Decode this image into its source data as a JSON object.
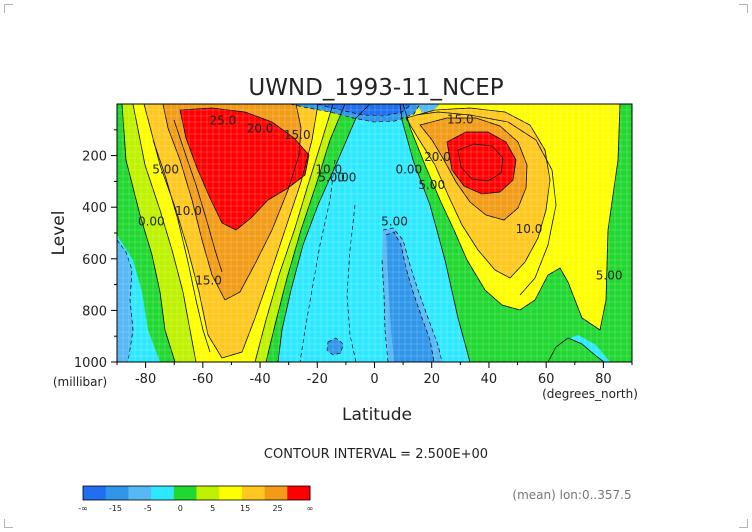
{
  "chart_data": {
    "type": "contour",
    "title": "UWND_1993-11_NCEP",
    "xlabel": "Latitude",
    "ylabel": "Level",
    "x_units": "(degrees_north)",
    "y_units": "(millibar)",
    "xlim": [
      -90,
      90
    ],
    "ylim": [
      1000,
      0
    ],
    "y_axis_inverted": true,
    "xticks": [
      -80,
      -60,
      -40,
      -20,
      0,
      20,
      40,
      60,
      80
    ],
    "yticks": [
      200,
      400,
      600,
      800,
      1000
    ],
    "contour_interval_label": "CONTOUR INTERVAL = 2.500E+00",
    "averaging_note": "(mean) lon:0..357.5",
    "colorbar": {
      "tick_labels": [
        "-∞",
        "-15",
        "-5",
        "0",
        "5",
        "15",
        "25",
        "∞"
      ],
      "colors": [
        "#1f6ff0",
        "#2f96ea",
        "#56b8f4",
        "#2ee8ff",
        "#20d830",
        "#bff200",
        "#ffff00",
        "#ffc81e",
        "#f29b17",
        "#ff0000"
      ]
    },
    "contour_labels": [
      {
        "text": "25.0",
        "lat": -53,
        "lev": 80
      },
      {
        "text": "20.0",
        "lat": -40,
        "lev": 110
      },
      {
        "text": "15.0",
        "lat": -27,
        "lev": 135
      },
      {
        "text": "5.00",
        "lat": -73,
        "lev": 270
      },
      {
        "text": "0.00",
        "lat": -78,
        "lev": 470
      },
      {
        "text": "10.0",
        "lat": -65,
        "lev": 430
      },
      {
        "text": "15.0",
        "lat": -58,
        "lev": 700
      },
      {
        "text": "10.0",
        "lat": -16,
        "lev": 270
      },
      {
        "text": "5.00",
        "lat": -15,
        "lev": 300
      },
      {
        "text": "0.00",
        "lat": -11,
        "lev": 300
      },
      {
        "text": "15.0",
        "lat": 30,
        "lev": 75
      },
      {
        "text": "20.0",
        "lat": 22,
        "lev": 220
      },
      {
        "text": "0.00",
        "lat": 12,
        "lev": 270
      },
      {
        "text": "5.00",
        "lat": 20,
        "lev": 330
      },
      {
        "text": "5.00",
        "lat": 7,
        "lev": 470
      },
      {
        "text": "10.0",
        "lat": 54,
        "lev": 500
      },
      {
        "text": "5.00",
        "lat": 82,
        "lev": 680
      }
    ]
  }
}
